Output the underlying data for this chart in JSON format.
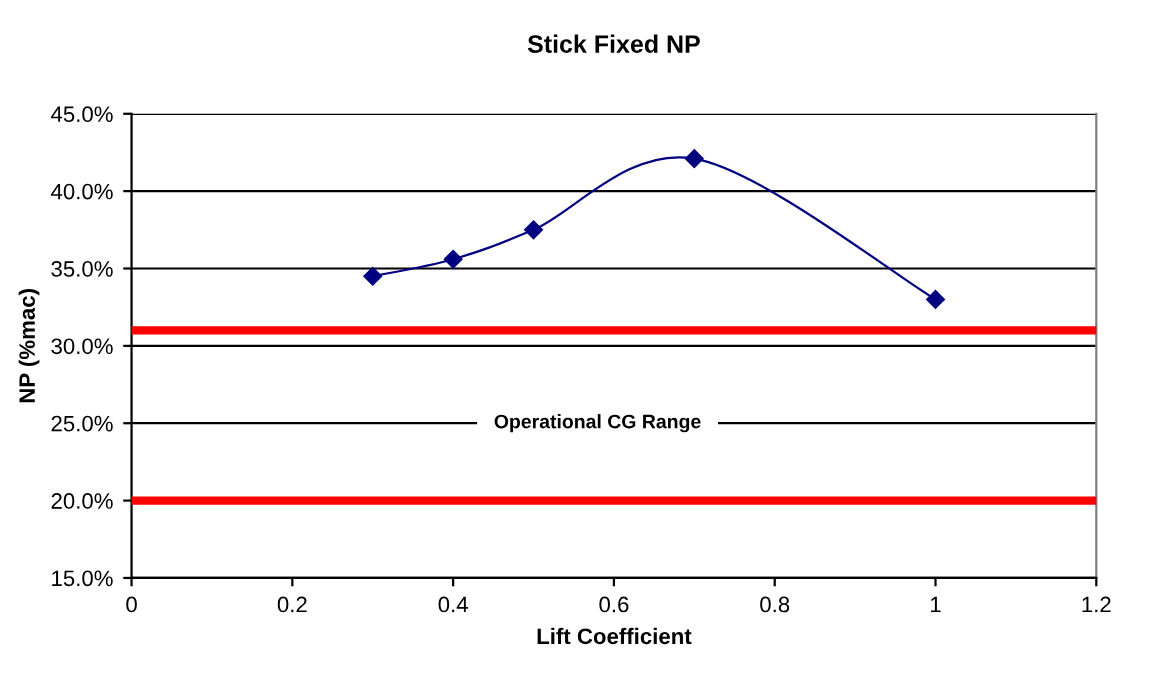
{
  "chart_data": {
    "type": "line",
    "title": "Stick Fixed NP",
    "xlabel": "Lift Coefficient",
    "ylabel": "NP (%mac)",
    "x": [
      0.3,
      0.4,
      0.5,
      0.7,
      1.0
    ],
    "series": [
      {
        "color": "#000080",
        "values": [
          34.5,
          35.6,
          37.5,
          42.1,
          33.0
        ]
      }
    ],
    "marker": "diamond",
    "grid": "y",
    "legend": false,
    "xlim": [
      0,
      1.2
    ],
    "xticks": [
      0,
      0.2,
      0.4,
      0.6,
      0.8,
      1,
      1.2
    ],
    "ylim": [
      15,
      45
    ],
    "yticks": [
      {
        "value": 15,
        "label": "15.0%"
      },
      {
        "value": 20,
        "label": "20.0%"
      },
      {
        "value": 25,
        "label": "25.0%"
      },
      {
        "value": 30,
        "label": "30.0%"
      },
      {
        "value": 35,
        "label": "35.0%"
      },
      {
        "value": 40,
        "label": "40.0%"
      },
      {
        "value": 45,
        "label": "45.0%"
      }
    ],
    "ref_lines": [
      {
        "axis": "y",
        "value": 31.0,
        "color": "#ff0000"
      },
      {
        "axis": "y",
        "value": 20.0,
        "color": "#ff0000"
      }
    ],
    "annotations": [
      "Operational CG Range"
    ]
  }
}
